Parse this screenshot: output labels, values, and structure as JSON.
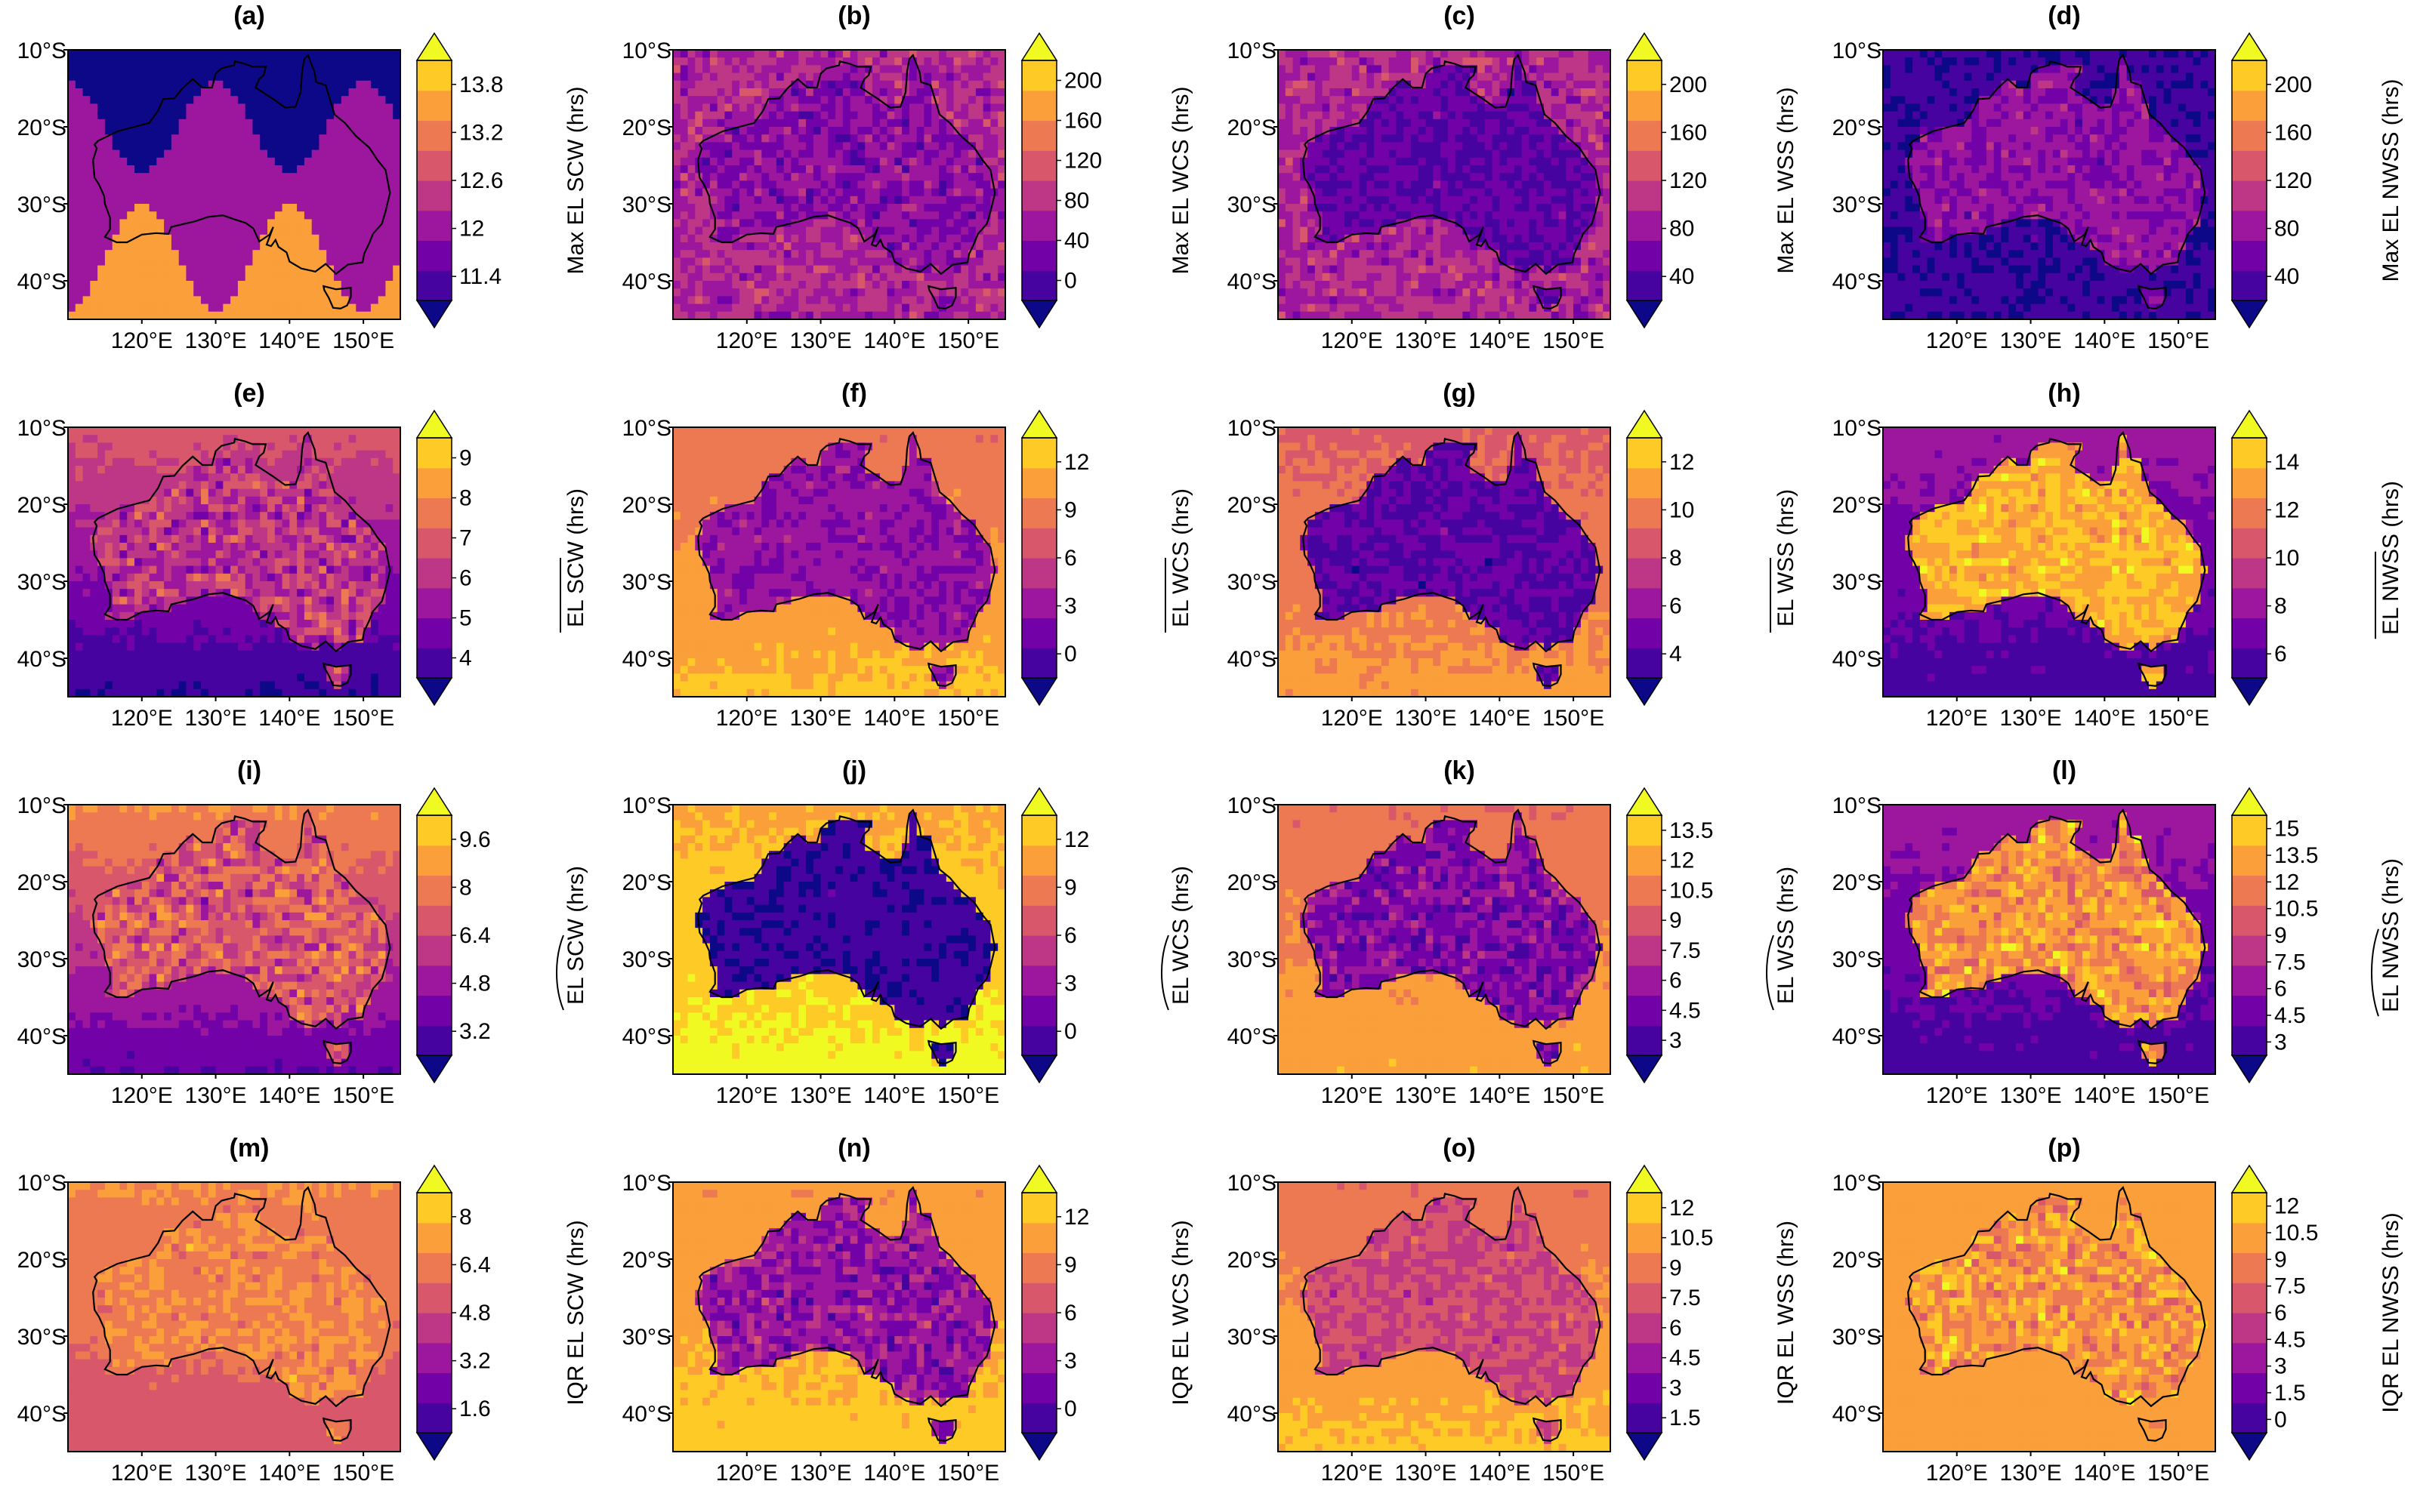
{
  "figure": {
    "colormap": [
      "#0d0887",
      "#46039f",
      "#7201a8",
      "#9c179e",
      "#bd3786",
      "#d8576b",
      "#ed7953",
      "#fb9f3a",
      "#fdca26",
      "#f0f921"
    ],
    "coastline_color": "#000000"
  },
  "chart_data": [
    {
      "type": "map",
      "panel": "(a)",
      "title": "(a)",
      "colorbar_label": "Max EL SCW (hrs)",
      "label_style": "plain",
      "colorbar_ticks": [
        "11.4",
        "12",
        "12.6",
        "13.2",
        "13.8"
      ],
      "vmin": 11.1,
      "vmax": 14.1,
      "pattern": "sinusoid",
      "lat_ticks": [
        "10°S",
        "20°S",
        "30°S",
        "40°S"
      ],
      "lon_ticks": [
        "120°E",
        "130°E",
        "140°E",
        "150°E"
      ],
      "extent": {
        "lon": [
          110,
          155
        ],
        "lat": [
          -45,
          -10
        ]
      }
    },
    {
      "type": "map",
      "panel": "(b)",
      "title": "(b)",
      "colorbar_label": "Max EL WCS (hrs)",
      "label_style": "plain",
      "colorbar_ticks": [
        "0",
        "40",
        "80",
        "120",
        "160",
        "200"
      ],
      "vmin": -20,
      "vmax": 220,
      "pattern": "max_wcs",
      "lat_ticks": [
        "10°S",
        "20°S",
        "30°S",
        "40°S"
      ],
      "lon_ticks": [
        "120°E",
        "130°E",
        "140°E",
        "150°E"
      ],
      "extent": {
        "lon": [
          110,
          155
        ],
        "lat": [
          -45,
          -10
        ]
      }
    },
    {
      "type": "map",
      "panel": "(c)",
      "title": "(c)",
      "colorbar_label": "Max EL WSS (hrs)",
      "label_style": "plain",
      "colorbar_ticks": [
        "40",
        "80",
        "120",
        "160",
        "200"
      ],
      "vmin": 20,
      "vmax": 220,
      "pattern": "max_wss",
      "lat_ticks": [
        "10°S",
        "20°S",
        "30°S",
        "40°S"
      ],
      "lon_ticks": [
        "120°E",
        "130°E",
        "140°E",
        "150°E"
      ],
      "extent": {
        "lon": [
          110,
          155
        ],
        "lat": [
          -45,
          -10
        ]
      }
    },
    {
      "type": "map",
      "panel": "(d)",
      "title": "(d)",
      "colorbar_label": "Max EL NWSS (hrs)",
      "label_style": "plain",
      "colorbar_ticks": [
        "40",
        "80",
        "120",
        "160",
        "200"
      ],
      "vmin": 20,
      "vmax": 220,
      "pattern": "max_nwss",
      "lat_ticks": [
        "10°S",
        "20°S",
        "30°S",
        "40°S"
      ],
      "lon_ticks": [
        "120°E",
        "130°E",
        "140°E",
        "150°E"
      ],
      "extent": {
        "lon": [
          110,
          155
        ],
        "lat": [
          -45,
          -10
        ]
      }
    },
    {
      "type": "map",
      "panel": "(e)",
      "title": "(e)",
      "colorbar_label": "EL SCW (hrs)",
      "label_style": "overline",
      "colorbar_ticks": [
        "4",
        "5",
        "6",
        "7",
        "8",
        "9"
      ],
      "vmin": 3.5,
      "vmax": 9.5,
      "pattern": "mean_scw",
      "lat_ticks": [
        "10°S",
        "20°S",
        "30°S",
        "40°S"
      ],
      "lon_ticks": [
        "120°E",
        "130°E",
        "140°E",
        "150°E"
      ],
      "extent": {
        "lon": [
          110,
          155
        ],
        "lat": [
          -45,
          -10
        ]
      }
    },
    {
      "type": "map",
      "panel": "(f)",
      "title": "(f)",
      "colorbar_label": "EL WCS (hrs)",
      "label_style": "overline",
      "colorbar_ticks": [
        "0",
        "3",
        "6",
        "9",
        "12"
      ],
      "vmin": -1.5,
      "vmax": 13.5,
      "pattern": "mean_wcs",
      "lat_ticks": [
        "10°S",
        "20°S",
        "30°S",
        "40°S"
      ],
      "lon_ticks": [
        "120°E",
        "130°E",
        "140°E",
        "150°E"
      ],
      "extent": {
        "lon": [
          110,
          155
        ],
        "lat": [
          -45,
          -10
        ]
      }
    },
    {
      "type": "map",
      "panel": "(g)",
      "title": "(g)",
      "colorbar_label": "EL WSS (hrs)",
      "label_style": "overline",
      "colorbar_ticks": [
        "4",
        "6",
        "8",
        "10",
        "12"
      ],
      "vmin": 3,
      "vmax": 13,
      "pattern": "mean_wss",
      "lat_ticks": [
        "10°S",
        "20°S",
        "30°S",
        "40°S"
      ],
      "lon_ticks": [
        "120°E",
        "130°E",
        "140°E",
        "150°E"
      ],
      "extent": {
        "lon": [
          110,
          155
        ],
        "lat": [
          -45,
          -10
        ]
      }
    },
    {
      "type": "map",
      "panel": "(h)",
      "title": "(h)",
      "colorbar_label": "EL NWSS (hrs)",
      "label_style": "overline",
      "colorbar_ticks": [
        "6",
        "8",
        "10",
        "12",
        "14"
      ],
      "vmin": 5,
      "vmax": 15,
      "pattern": "mean_nwss",
      "lat_ticks": [
        "10°S",
        "20°S",
        "30°S",
        "40°S"
      ],
      "lon_ticks": [
        "120°E",
        "130°E",
        "140°E",
        "150°E"
      ],
      "extent": {
        "lon": [
          110,
          155
        ],
        "lat": [
          -45,
          -10
        ]
      }
    },
    {
      "type": "map",
      "panel": "(i)",
      "title": "(i)",
      "colorbar_label": "EL SCW (hrs)",
      "label_style": "tilde",
      "colorbar_ticks": [
        "3.2",
        "4.8",
        "6.4",
        "8",
        "9.6"
      ],
      "vmin": 2.4,
      "vmax": 10.4,
      "pattern": "median_scw",
      "lat_ticks": [
        "10°S",
        "20°S",
        "30°S",
        "40°S"
      ],
      "lon_ticks": [
        "120°E",
        "130°E",
        "140°E",
        "150°E"
      ],
      "extent": {
        "lon": [
          110,
          155
        ],
        "lat": [
          -45,
          -10
        ]
      }
    },
    {
      "type": "map",
      "panel": "(j)",
      "title": "(j)",
      "colorbar_label": "EL WCS (hrs)",
      "label_style": "tilde",
      "colorbar_ticks": [
        "0",
        "3",
        "6",
        "9",
        "12"
      ],
      "vmin": -1.5,
      "vmax": 13.5,
      "pattern": "median_wcs",
      "lat_ticks": [
        "10°S",
        "20°S",
        "30°S",
        "40°S"
      ],
      "lon_ticks": [
        "120°E",
        "130°E",
        "140°E",
        "150°E"
      ],
      "extent": {
        "lon": [
          110,
          155
        ],
        "lat": [
          -45,
          -10
        ]
      }
    },
    {
      "type": "map",
      "panel": "(k)",
      "title": "(k)",
      "colorbar_label": "EL WSS (hrs)",
      "label_style": "tilde",
      "colorbar_ticks": [
        "3",
        "4.5",
        "6",
        "7.5",
        "9",
        "10.5",
        "12",
        "13.5"
      ],
      "vmin": 2.25,
      "vmax": 14.25,
      "pattern": "median_wss",
      "lat_ticks": [
        "10°S",
        "20°S",
        "30°S",
        "40°S"
      ],
      "lon_ticks": [
        "120°E",
        "130°E",
        "140°E",
        "150°E"
      ],
      "extent": {
        "lon": [
          110,
          155
        ],
        "lat": [
          -45,
          -10
        ]
      }
    },
    {
      "type": "map",
      "panel": "(l)",
      "title": "(l)",
      "colorbar_label": "EL NWSS (hrs)",
      "label_style": "tilde",
      "colorbar_ticks": [
        "3",
        "4.5",
        "6",
        "7.5",
        "9",
        "10.5",
        "12",
        "13.5",
        "15"
      ],
      "vmin": 2.25,
      "vmax": 15.75,
      "pattern": "median_nwss",
      "lat_ticks": [
        "10°S",
        "20°S",
        "30°S",
        "40°S"
      ],
      "lon_ticks": [
        "120°E",
        "130°E",
        "140°E",
        "150°E"
      ],
      "extent": {
        "lon": [
          110,
          155
        ],
        "lat": [
          -45,
          -10
        ]
      }
    },
    {
      "type": "map",
      "panel": "(m)",
      "title": "(m)",
      "colorbar_label": "IQR EL SCW (hrs)",
      "label_style": "plain",
      "colorbar_ticks": [
        "1.6",
        "3.2",
        "4.8",
        "6.4",
        "8"
      ],
      "vmin": 0.8,
      "vmax": 8.8,
      "pattern": "iqr_scw",
      "lat_ticks": [
        "10°S",
        "20°S",
        "30°S",
        "40°S"
      ],
      "lon_ticks": [
        "120°E",
        "130°E",
        "140°E",
        "150°E"
      ],
      "extent": {
        "lon": [
          110,
          155
        ],
        "lat": [
          -45,
          -10
        ]
      }
    },
    {
      "type": "map",
      "panel": "(n)",
      "title": "(n)",
      "colorbar_label": "IQR EL WCS (hrs)",
      "label_style": "plain",
      "colorbar_ticks": [
        "0",
        "3",
        "6",
        "9",
        "12"
      ],
      "vmin": -1.5,
      "vmax": 13.5,
      "pattern": "iqr_wcs",
      "lat_ticks": [
        "10°S",
        "20°S",
        "30°S",
        "40°S"
      ],
      "lon_ticks": [
        "120°E",
        "130°E",
        "140°E",
        "150°E"
      ],
      "extent": {
        "lon": [
          110,
          155
        ],
        "lat": [
          -45,
          -10
        ]
      }
    },
    {
      "type": "map",
      "panel": "(o)",
      "title": "(o)",
      "colorbar_label": "IQR EL WSS (hrs)",
      "label_style": "plain",
      "colorbar_ticks": [
        "1.5",
        "3",
        "4.5",
        "6",
        "7.5",
        "9",
        "10.5",
        "12"
      ],
      "vmin": 0.75,
      "vmax": 12.75,
      "pattern": "iqr_wss",
      "lat_ticks": [
        "10°S",
        "20°S",
        "30°S",
        "40°S"
      ],
      "lon_ticks": [
        "120°E",
        "130°E",
        "140°E",
        "150°E"
      ],
      "extent": {
        "lon": [
          110,
          155
        ],
        "lat": [
          -45,
          -10
        ]
      }
    },
    {
      "type": "map",
      "panel": "(p)",
      "title": "(p)",
      "colorbar_label": "IQR EL NWSS (hrs)",
      "label_style": "plain",
      "colorbar_ticks": [
        "0",
        "1.5",
        "3",
        "4.5",
        "6",
        "7.5",
        "9",
        "10.5",
        "12"
      ],
      "vmin": -0.75,
      "vmax": 12.75,
      "pattern": "iqr_nwss",
      "lat_ticks": [
        "10°S",
        "20°S",
        "30°S",
        "40°S"
      ],
      "lon_ticks": [
        "120°E",
        "130°E",
        "140°E",
        "150°E"
      ],
      "extent": {
        "lon": [
          110,
          155
        ],
        "lat": [
          -45,
          -10
        ]
      }
    }
  ]
}
